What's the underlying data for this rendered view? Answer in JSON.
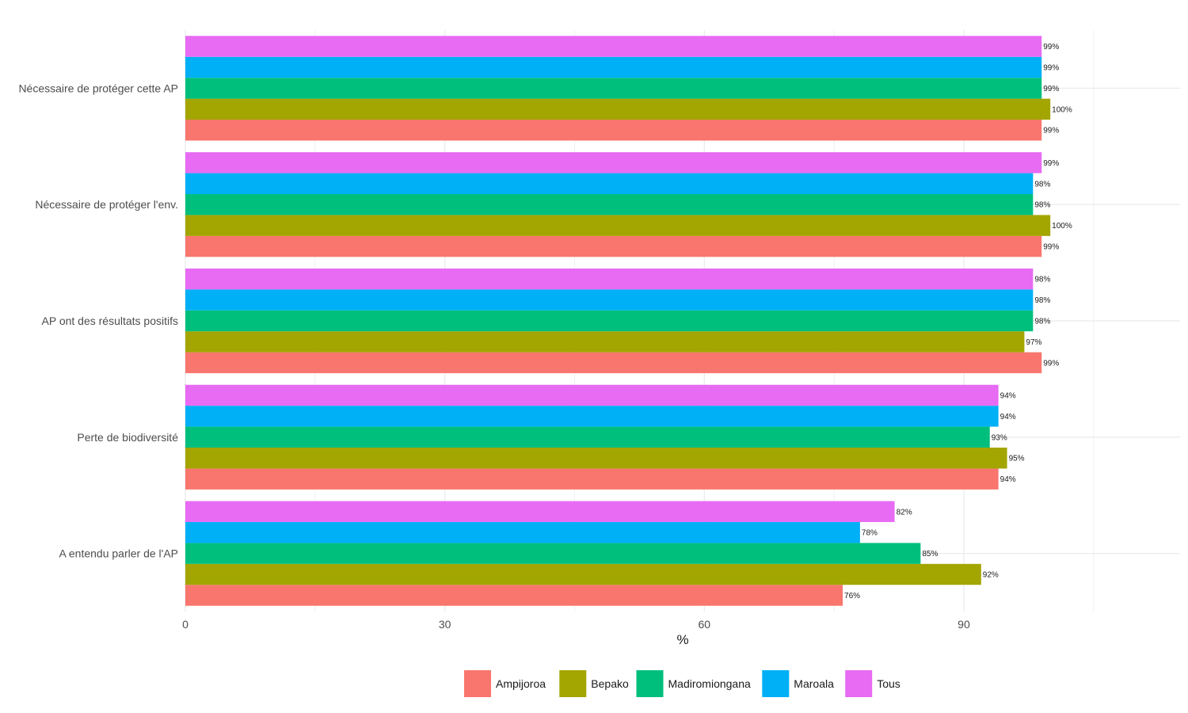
{
  "chart_data": {
    "type": "bar",
    "orientation": "horizontal",
    "categories": [
      "Nécessaire de protéger cette AP",
      "Nécessaire de protéger l'env.",
      "AP ont des résultats positifs",
      "Perte de biodiversité",
      "A entendu parler de l'AP"
    ],
    "series": [
      {
        "name": "Ampijoroa",
        "color": "#F8766D",
        "values": [
          99,
          99,
          99,
          94,
          76
        ],
        "labels": [
          "99%",
          "99%",
          "99%",
          "94%",
          "76%"
        ]
      },
      {
        "name": "Bepako",
        "color": "#A3A500",
        "values": [
          100,
          100,
          97,
          95,
          92
        ],
        "labels": [
          "100%",
          "100%",
          "97%",
          "95%",
          "92%"
        ]
      },
      {
        "name": "Madiromiongana",
        "color": "#00BF7D",
        "values": [
          99,
          98,
          98,
          93,
          85
        ],
        "labels": [
          "99%",
          "98%",
          "98%",
          "93%",
          "85%"
        ]
      },
      {
        "name": "Maroala",
        "color": "#00B0F6",
        "values": [
          99,
          98,
          98,
          94,
          78
        ],
        "labels": [
          "99%",
          "98%",
          "98%",
          "94%",
          "78%"
        ]
      },
      {
        "name": "Tous",
        "color": "#E76BF3",
        "values": [
          99,
          99,
          98,
          94,
          82
        ],
        "labels": [
          "99%",
          "99%",
          "98%",
          "94%",
          "82%"
        ]
      }
    ],
    "xlabel": "%",
    "ylabel": "",
    "xlim": [
      0,
      115
    ],
    "xticks": [
      0,
      30,
      60,
      90
    ],
    "grid": true,
    "legend_position": "bottom"
  }
}
